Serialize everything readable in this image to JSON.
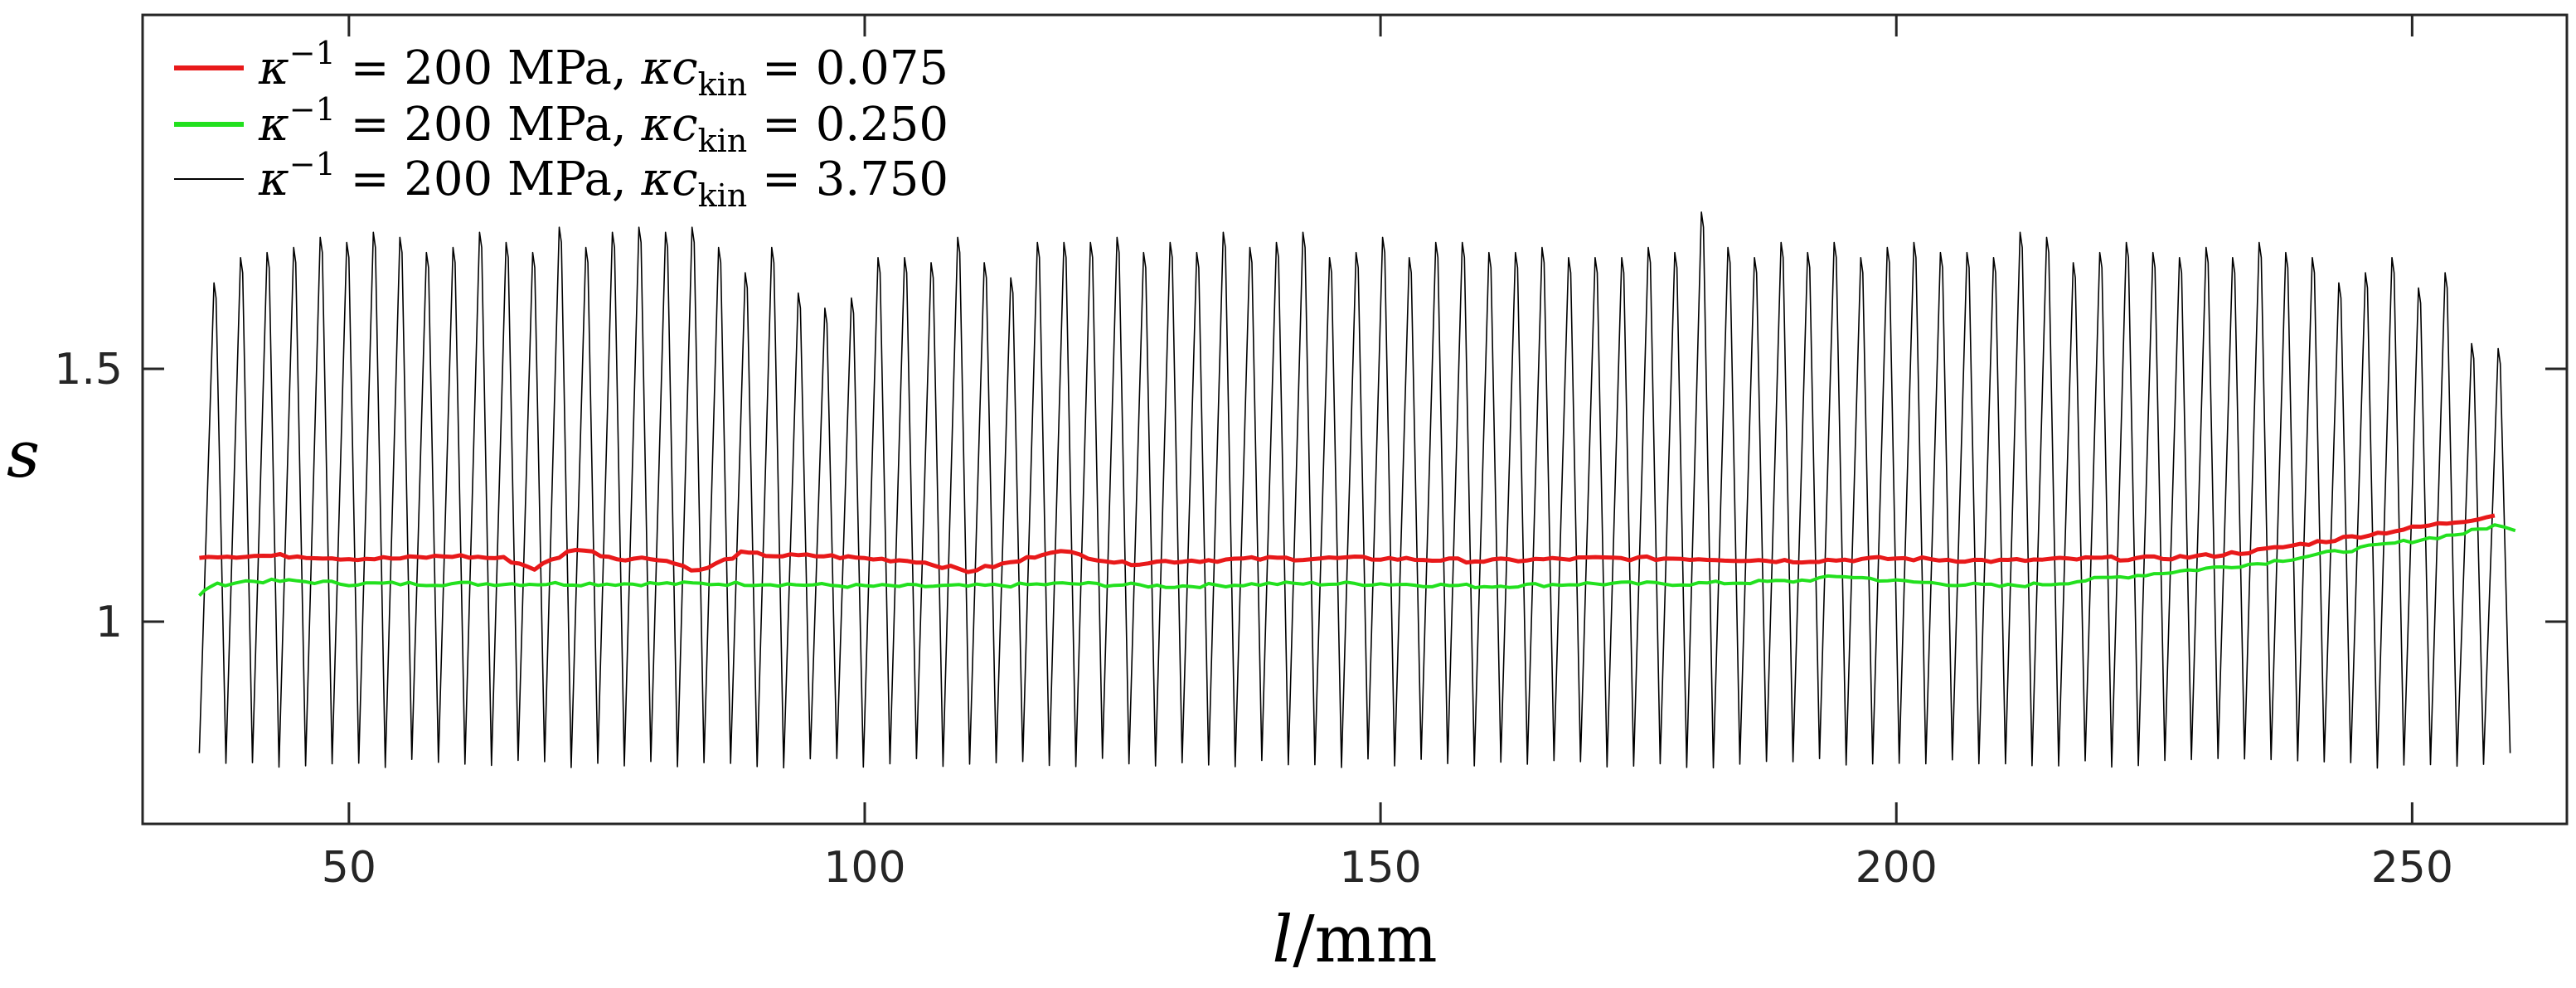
{
  "chart_data": {
    "type": "line",
    "title": "",
    "xlabel": {
      "var": "l",
      "unit": "/mm"
    },
    "ylabel": "s",
    "xlim": [
      30,
      265
    ],
    "ylim": [
      0.6,
      2.2
    ],
    "x_ticks": [
      50,
      100,
      150,
      200,
      250
    ],
    "x_tick_labels": [
      "50",
      "100",
      "150",
      "200",
      "250"
    ],
    "y_ticks": [
      1,
      1.5
    ],
    "y_tick_labels": [
      "1",
      "1.5"
    ],
    "grid": false,
    "legend_position": "top-left",
    "series": [
      {
        "name": "κ^-1 = 200 MPa, κc_kin = 0.075",
        "legend": {
          "kappa": "κ",
          "sup": "−1",
          "eq1": " = 200 MPa, ",
          "kc": "κc",
          "sub": "kin",
          "eq2": " = 0.075"
        },
        "color": "#e8191a",
        "line_width": 5,
        "style": "smooth",
        "x": [
          35.5,
          40,
          45,
          50,
          55,
          60,
          65,
          68,
          72,
          76,
          80,
          84,
          88,
          92,
          96,
          100,
          105,
          110,
          115,
          118,
          120,
          125,
          130,
          140,
          150,
          160,
          170,
          180,
          190,
          200,
          210,
          220,
          225,
          230,
          235,
          240,
          245,
          250,
          255,
          258
        ],
        "values": [
          1.13,
          1.13,
          1.13,
          1.125,
          1.125,
          1.13,
          1.125,
          1.105,
          1.145,
          1.125,
          1.125,
          1.1,
          1.135,
          1.13,
          1.13,
          1.125,
          1.12,
          1.1,
          1.12,
          1.14,
          1.135,
          1.115,
          1.12,
          1.125,
          1.125,
          1.12,
          1.125,
          1.125,
          1.12,
          1.125,
          1.12,
          1.125,
          1.125,
          1.13,
          1.14,
          1.155,
          1.17,
          1.185,
          1.2,
          1.21
        ]
      },
      {
        "name": "κ^-1 = 200 MPa, κc_kin = 0.250",
        "legend": {
          "kappa": "κ",
          "sup": "−1",
          "eq1": " = 200 MPa, ",
          "kc": "κc",
          "sub": "kin",
          "eq2": " = 0.250"
        },
        "color": "#22e01e",
        "line_width": 4,
        "style": "smooth",
        "x": [
          35.5,
          36.5,
          38,
          40,
          45,
          50,
          60,
          70,
          80,
          90,
          100,
          110,
          120,
          130,
          140,
          150,
          160,
          170,
          180,
          190,
          195,
          200,
          205,
          210,
          215,
          220,
          225,
          230,
          235,
          240,
          245,
          250,
          255,
          258,
          260
        ],
        "values": [
          1.05,
          1.07,
          1.075,
          1.08,
          1.08,
          1.075,
          1.075,
          1.075,
          1.075,
          1.075,
          1.07,
          1.07,
          1.075,
          1.07,
          1.075,
          1.075,
          1.07,
          1.075,
          1.075,
          1.08,
          1.09,
          1.08,
          1.075,
          1.07,
          1.075,
          1.085,
          1.095,
          1.105,
          1.115,
          1.13,
          1.145,
          1.16,
          1.175,
          1.19,
          1.18
        ]
      },
      {
        "name": "κ^-1 = 200 MPa, κc_kin = 3.750",
        "legend": {
          "kappa": "κ",
          "sup": "−1",
          "eq1": " = 200 MPa, ",
          "kc": "κc",
          "sub": "kin",
          "eq2": " = 3.750"
        },
        "color": "#000000",
        "line_width": 1.6,
        "style": "zigzag",
        "x_start": 35.5,
        "x_end": 259.5,
        "cycles": 87,
        "low": 0.72,
        "end_value": 0.74,
        "peaks": [
          1.67,
          1.72,
          1.73,
          1.74,
          1.76,
          1.75,
          1.77,
          1.76,
          1.73,
          1.74,
          1.77,
          1.75,
          1.73,
          1.78,
          1.74,
          1.77,
          1.78,
          1.77,
          1.78,
          1.74,
          1.69,
          1.74,
          1.65,
          1.62,
          1.64,
          1.72,
          1.72,
          1.71,
          1.76,
          1.71,
          1.68,
          1.75,
          1.75,
          1.75,
          1.76,
          1.73,
          1.75,
          1.73,
          1.77,
          1.74,
          1.75,
          1.77,
          1.72,
          1.73,
          1.76,
          1.72,
          1.75,
          1.75,
          1.73,
          1.73,
          1.74,
          1.72,
          1.72,
          1.72,
          1.74,
          1.73,
          1.81,
          1.74,
          1.72,
          1.75,
          1.73,
          1.75,
          1.72,
          1.74,
          1.75,
          1.73,
          1.73,
          1.72,
          1.77,
          1.76,
          1.71,
          1.73,
          1.75,
          1.73,
          1.72,
          1.74,
          1.72,
          1.75,
          1.73,
          1.72,
          1.67,
          1.69,
          1.72,
          1.66,
          1.69,
          1.55,
          1.54
        ]
      }
    ]
  }
}
